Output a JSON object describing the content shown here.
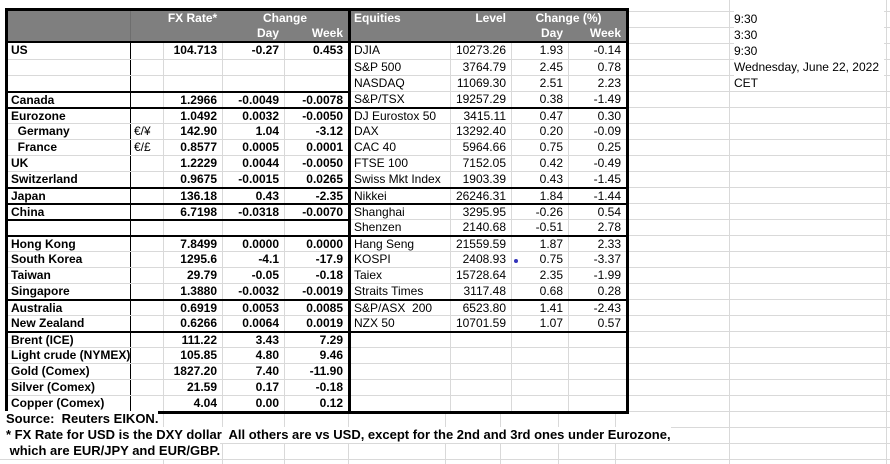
{
  "colors": {
    "header_bg": "#7f7f7f",
    "header_text": "#ffffff",
    "gridline": "#d9d9d9",
    "table_border": "#000000",
    "kospi_dot": "#3333bb"
  },
  "fx_table": {
    "header": {
      "rate": "FX Rate*",
      "change": "Change",
      "day": "Day",
      "week": "Week"
    },
    "rows": [
      {
        "name": "US",
        "pair": "",
        "rate": "104.713",
        "day": "-0.27",
        "week": "0.453"
      },
      {
        "name": "",
        "pair": "",
        "rate": "",
        "day": "",
        "week": ""
      },
      {
        "name": "",
        "pair": "",
        "rate": "",
        "day": "",
        "week": ""
      },
      {
        "name": "Canada",
        "pair": "",
        "rate": "1.2966",
        "day": "-0.0049",
        "week": "-0.0078"
      },
      {
        "name": "Eurozone",
        "pair": "",
        "rate": "1.0492",
        "day": "0.0032",
        "week": "-0.0050"
      },
      {
        "name": "  Germany",
        "pair": "€/¥",
        "rate": "142.90",
        "day": "1.04",
        "week": "-3.12"
      },
      {
        "name": "  France",
        "pair": "€/£",
        "rate": "0.8577",
        "day": "0.0005",
        "week": "0.0001"
      },
      {
        "name": "UK",
        "pair": "",
        "rate": "1.2229",
        "day": "0.0044",
        "week": "-0.0050"
      },
      {
        "name": "Switzerland",
        "pair": "",
        "rate": "0.9675",
        "day": "-0.0015",
        "week": "0.0265"
      },
      {
        "name": "Japan",
        "pair": "",
        "rate": "136.18",
        "day": "0.43",
        "week": "-2.35"
      },
      {
        "name": "China",
        "pair": "",
        "rate": "6.7198",
        "day": "-0.0318",
        "week": "-0.0070"
      },
      {
        "name": "",
        "pair": "",
        "rate": "",
        "day": "",
        "week": ""
      },
      {
        "name": "Hong Kong",
        "pair": "",
        "rate": "7.8499",
        "day": "0.0000",
        "week": "0.0000"
      },
      {
        "name": "South Korea",
        "pair": "",
        "rate": "1295.6",
        "day": "-4.1",
        "week": "-17.9"
      },
      {
        "name": "Taiwan",
        "pair": "",
        "rate": "29.79",
        "day": "-0.05",
        "week": "-0.18"
      },
      {
        "name": "Singapore",
        "pair": "",
        "rate": "1.3880",
        "day": "-0.0032",
        "week": "-0.0019"
      },
      {
        "name": "Australia",
        "pair": "",
        "rate": "0.6919",
        "day": "0.0053",
        "week": "0.0085"
      },
      {
        "name": "New Zealand",
        "pair": "",
        "rate": "0.6266",
        "day": "0.0064",
        "week": "0.0019"
      },
      {
        "name": "Brent (ICE)",
        "pair": "",
        "rate": "111.22",
        "day": "3.43",
        "week": "7.29"
      },
      {
        "name": "Light crude (NYMEX)",
        "pair": "",
        "rate": "105.85",
        "day": "4.80",
        "week": "9.46"
      },
      {
        "name": "Gold (Comex)",
        "pair": "",
        "rate": "1827.20",
        "day": "7.40",
        "week": "-11.90"
      },
      {
        "name": "Silver (Comex)",
        "pair": "",
        "rate": "21.59",
        "day": "0.17",
        "week": "-0.18"
      },
      {
        "name": "Copper (Comex)",
        "pair": "",
        "rate": "4.04",
        "day": "0.00",
        "week": "0.12"
      }
    ]
  },
  "equities_table": {
    "header": {
      "name": "Equities",
      "level": "Level",
      "change": "Change (%)",
      "day": "Day",
      "week": "Week"
    },
    "rows": [
      {
        "name": "DJIA",
        "level": "10273.26",
        "day": "1.93",
        "week": "-0.14"
      },
      {
        "name": "S&P 500",
        "level": "3764.79",
        "day": "2.45",
        "week": "0.78"
      },
      {
        "name": "NASDAQ",
        "level": "11069.30",
        "day": "2.51",
        "week": "2.23"
      },
      {
        "name": "S&P/TSX",
        "level": "19257.29",
        "day": "0.38",
        "week": "-1.49"
      },
      {
        "name": "DJ Eurostox 50",
        "level": "3415.11",
        "day": "0.47",
        "week": "0.30"
      },
      {
        "name": "DAX",
        "level": "13292.40",
        "day": "0.20",
        "week": "-0.09"
      },
      {
        "name": "CAC 40",
        "level": "5964.66",
        "day": "0.75",
        "week": "0.25"
      },
      {
        "name": "FTSE 100",
        "level": "7152.05",
        "day": "0.42",
        "week": "-0.49"
      },
      {
        "name": "Swiss Mkt Index",
        "level": "1903.39",
        "day": "0.43",
        "week": "-1.45"
      },
      {
        "name": "Nikkei",
        "level": "26246.31",
        "day": "1.84",
        "week": "-1.44"
      },
      {
        "name": "Shanghai",
        "level": "3295.95",
        "day": "-0.26",
        "week": "0.54"
      },
      {
        "name": "Shenzen",
        "level": "2140.68",
        "day": "-0.51",
        "week": "2.78"
      },
      {
        "name": "Hang Seng",
        "level": "21559.59",
        "day": "1.87",
        "week": "2.33"
      },
      {
        "name": "KOSPI",
        "level": "2408.93",
        "day": "0.75",
        "week": "-3.37"
      },
      {
        "name": "Taiex",
        "level": "15728.64",
        "day": "2.35",
        "week": "-1.99"
      },
      {
        "name": "Straits Times",
        "level": "3117.48",
        "day": "0.68",
        "week": "0.28"
      },
      {
        "name": "S&P/ASX  200",
        "level": "6523.80",
        "day": "1.41",
        "week": "-2.43"
      },
      {
        "name": "NZX 50",
        "level": "10701.59",
        "day": "1.07",
        "week": "0.57"
      },
      {
        "name": "",
        "level": "",
        "day": "",
        "week": ""
      },
      {
        "name": "",
        "level": "",
        "day": "",
        "week": ""
      },
      {
        "name": "",
        "level": "",
        "day": "",
        "week": ""
      },
      {
        "name": "",
        "level": "",
        "day": "",
        "week": ""
      },
      {
        "name": "",
        "level": "",
        "day": "",
        "week": ""
      }
    ]
  },
  "side_notes": [
    "9:30",
    "3:30",
    "9:30",
    "Wednesday, June 22, 2022",
    "CET"
  ],
  "footer_notes": [
    "Source:  Reuters EIKON.",
    "* FX Rate for USD is the DXY dollar  All others are vs USD, except for the 2nd and 3rd ones under Eurozone,",
    " which are EUR/JPY and EUR/GBP."
  ]
}
